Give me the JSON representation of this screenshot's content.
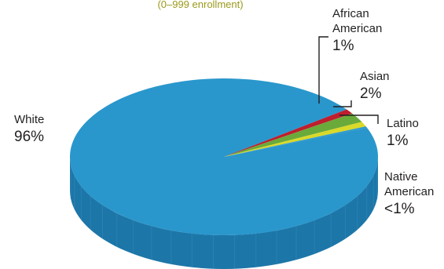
{
  "subtitle": "(0–999 enrollment)",
  "chart_data": {
    "type": "pie",
    "style": "3d",
    "categories": [
      "White",
      "African American",
      "Asian",
      "Latino",
      "Native American"
    ],
    "values": [
      96,
      1,
      2,
      1,
      0.3
    ],
    "labels": [
      {
        "name": [
          "White"
        ],
        "pct": "96%"
      },
      {
        "name": [
          "African",
          "American"
        ],
        "pct": "1%"
      },
      {
        "name": [
          "Asian"
        ],
        "pct": "2%"
      },
      {
        "name": [
          "Latino"
        ],
        "pct": "1%"
      },
      {
        "name": [
          "Native",
          "American"
        ],
        "pct": "<1%"
      }
    ],
    "colors": [
      "#2a97cc",
      "#be1e2d",
      "#6aaa3a",
      "#d9d92a",
      "#2a97cc"
    ],
    "side_colors": [
      "#1d76a8",
      "#8f1620",
      "#4d8a2a",
      "#aaaa1f",
      "#1d76a8"
    ],
    "legend": "none"
  }
}
